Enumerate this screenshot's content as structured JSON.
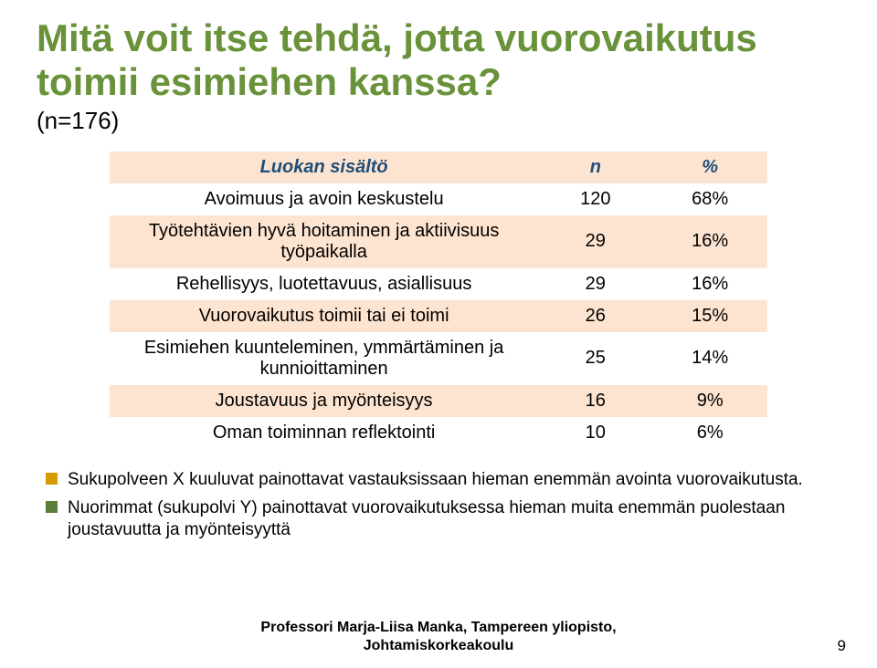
{
  "title_line1": "Mitä voit  itse tehdä, jotta vuorovaikutus",
  "title_line2": "toimii esimiehen kanssa?",
  "subnote": "(n=176)",
  "table": {
    "header": {
      "c0": "Luokan sisältö",
      "c1": "n",
      "c2": "%"
    },
    "header_color": "#1f4e79",
    "band_colors": {
      "odd": "#fde4d0",
      "even": "#ffffff"
    },
    "rows": [
      {
        "label": "Avoimuus ja avoin keskustelu",
        "n": "120",
        "pct": "68%"
      },
      {
        "label": "Työtehtävien hyvä hoitaminen ja aktiivisuus työpaikalla",
        "n": "29",
        "pct": "16%"
      },
      {
        "label": "Rehellisyys, luotettavuus, asiallisuus",
        "n": "29",
        "pct": "16%"
      },
      {
        "label": "Vuorovaikutus toimii tai ei toimi",
        "n": "26",
        "pct": "15%"
      },
      {
        "label": "Esimiehen kuunteleminen, ymmärtäminen ja kunnioittaminen",
        "n": "25",
        "pct": "14%"
      },
      {
        "label": "Joustavuus ja myönteisyys",
        "n": "16",
        "pct": "9%"
      },
      {
        "label": "Oman toiminnan reflektointi",
        "n": "10",
        "pct": "6%"
      }
    ]
  },
  "bullets": [
    {
      "text": "Sukupolveen X kuuluvat painottavat vastauksissaan hieman enemmän avointa vuorovaikutusta.",
      "color": "#d59b00"
    },
    {
      "text": "Nuorimmat (sukupolvi Y) painottavat vuorovaikutuksessa hieman muita enemmän puolestaan  joustavuutta ja myönteisyyttä",
      "color": "#5a7e3a"
    }
  ],
  "footer_line1": "Professori Marja-Liisa Manka, Tampereen yliopisto,",
  "footer_line2": "Johtamiskorkeakoulu",
  "page_number": "9",
  "colors": {
    "title": "#69923a",
    "table_header_text": "#1f4e79",
    "cream": "#fde4d0",
    "white": "#ffffff"
  },
  "fonts": {
    "title_size_pt": 32,
    "table_size_pt": 15,
    "bullet_size_pt": 14,
    "footer_size_pt": 12
  }
}
